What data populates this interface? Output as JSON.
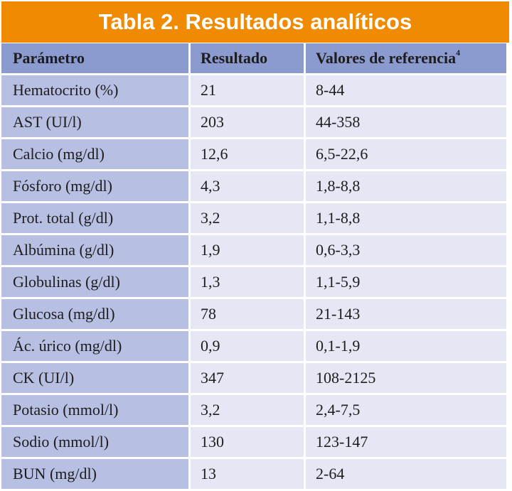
{
  "title": "Tabla 2. Resultados analíticos",
  "colors": {
    "title_bg": "#f08a00",
    "header_bg": "#8b9bcf",
    "param_col_bg": "#b7bfe2",
    "value_col_bg": "#e5e7f5"
  },
  "table": {
    "headers": {
      "parametro": "Parámetro",
      "resultado": "Resultado",
      "referencia": "Valores de referencia",
      "referencia_sup": "4"
    },
    "rows": [
      {
        "parametro": "Hematocrito (%)",
        "resultado": "21",
        "referencia": "8-44"
      },
      {
        "parametro": "AST (UI/l)",
        "resultado": "203",
        "referencia": "44-358"
      },
      {
        "parametro": "Calcio (mg/dl)",
        "resultado": "12,6",
        "referencia": "6,5-22,6"
      },
      {
        "parametro": "Fósforo (mg/dl)",
        "resultado": "4,3",
        "referencia": "1,8-8,8"
      },
      {
        "parametro": "Prot. total (g/dl)",
        "resultado": "3,2",
        "referencia": "1,1-8,8"
      },
      {
        "parametro": "Albúmina (g/dl)",
        "resultado": "1,9",
        "referencia": "0,6-3,3"
      },
      {
        "parametro": "Globulinas (g/dl)",
        "resultado": "1,3",
        "referencia": "1,1-5,9"
      },
      {
        "parametro": "Glucosa (mg/dl)",
        "resultado": "78",
        "referencia": "21-143"
      },
      {
        "parametro": "Ác. úrico (mg/dl)",
        "resultado": "0,9",
        "referencia": "0,1-1,9"
      },
      {
        "parametro": "CK (UI/l)",
        "resultado": "347",
        "referencia": "108-2125"
      },
      {
        "parametro": "Potasio (mmol/l)",
        "resultado": "3,2",
        "referencia": "2,4-7,5"
      },
      {
        "parametro": "Sodio (mmol/l)",
        "resultado": "130",
        "referencia": "123-147"
      },
      {
        "parametro": "BUN (mg/dl)",
        "resultado": "13",
        "referencia": "2-64"
      }
    ]
  }
}
